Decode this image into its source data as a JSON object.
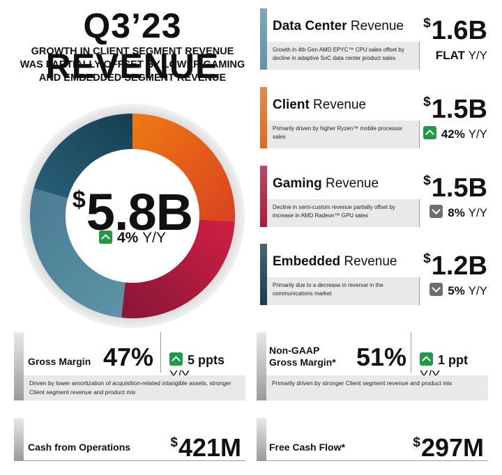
{
  "title": "Q3’23 REVENUE",
  "subtitle_lines": [
    "GROWTH IN CLIENT SEGMENT REVENUE",
    "WAS PARTIALLY OFFSET BY LOWER GAMING",
    "AND EMBEDDED SEGMENT REVENUE"
  ],
  "total": {
    "currency": "$",
    "value": "5.8B",
    "change": "4%",
    "change_unit": "Y/Y",
    "direction": "up"
  },
  "chart_data": {
    "type": "pie",
    "categories": [
      "Client",
      "Gaming",
      "Data Center",
      "Embedded"
    ],
    "values": [
      1.5,
      1.5,
      1.6,
      1.2
    ],
    "colors": [
      "#e3561c",
      "#a8173d",
      "#5d8da1",
      "#1b4e63"
    ]
  },
  "segments": [
    {
      "name_bold": "Data Center",
      "name_rest": " Revenue",
      "currency": "$",
      "value": "1.6B",
      "desc": "Growth in 4th Gen AMD EPYC™ CPU sales offset by decline in adaptive SoC data center product sales",
      "change": "FLAT",
      "change_unit": "Y/Y",
      "direction": "flat",
      "color": "#5f93a7"
    },
    {
      "name_bold": "Client",
      "name_rest": " Revenue",
      "currency": "$",
      "value": "1.5B",
      "desc": "Primarily driven by higher Ryzen™ mobile processor sales",
      "change": "42%",
      "change_unit": "Y/Y",
      "direction": "up",
      "color": "#e06a1b"
    },
    {
      "name_bold": "Gaming",
      "name_rest": " Revenue",
      "currency": "$",
      "value": "1.5B",
      "desc": "Decline in semi-custom revenue partially offset by increase in AMD Radeon™ GPU sales",
      "change": "8%",
      "change_unit": "Y/Y",
      "direction": "down",
      "color": "#b0183f"
    },
    {
      "name_bold": "Embedded",
      "name_rest": " Revenue",
      "currency": "$",
      "value": "1.2B",
      "desc": "Primarily due to a decrease in revenue in the communications market",
      "change": "5%",
      "change_unit": "Y/Y",
      "direction": "down",
      "color": "#173f4f"
    }
  ],
  "gross_margin": {
    "label": "Gross Margin",
    "value": "47%",
    "change": "5 ppts",
    "change_unit": "Y/Y",
    "note": "Driven by lower amortization of acquisition-related intangible assets, stronger Client segment revenue and product mix"
  },
  "nongaap_margin": {
    "label_line1": "Non-GAAP",
    "label_line2": "Gross Margin*",
    "value": "51%",
    "change": "1 ppt",
    "change_unit": "Y/Y",
    "note": "Primarily driven by stronger Client segment revenue and product mix"
  },
  "cash_ops": {
    "label": "Cash from Operations",
    "currency": "$",
    "value": "421M"
  },
  "fcf": {
    "label": "Free Cash Flow*",
    "currency": "$",
    "value": "297M"
  }
}
